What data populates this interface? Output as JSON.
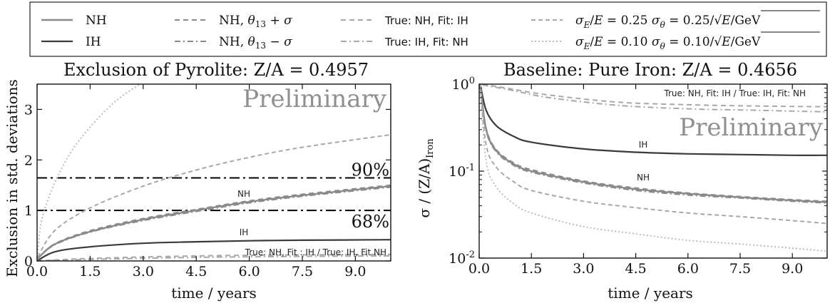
{
  "colors": {
    "nh": "#8a8a8a",
    "ih": "#3a3a3a",
    "dashed": "#a8a8a8",
    "dashdot": "#a8a8a8",
    "dotted": "#bdbdbd",
    "threshold": "#000000",
    "preliminary": "#8f8f8f"
  },
  "legend": [
    {
      "text": "NH",
      "style": "solid-light",
      "math": false
    },
    {
      "text": "IH",
      "style": "solid-dark",
      "math": false
    },
    {
      "text": "NH, θ13 + σ",
      "style": "dashed-dark",
      "math": true,
      "parts": [
        "NH, ",
        "θ",
        "13",
        " + σ"
      ]
    },
    {
      "text": "NH, θ13 − σ",
      "style": "dashdot-dark",
      "math": true,
      "parts": [
        "NH, ",
        "θ",
        "13",
        " − σ"
      ]
    },
    {
      "text": "True: NH, Fit: IH",
      "style": "dashed-light",
      "math": false
    },
    {
      "text": "True: IH, Fit: NH",
      "style": "dashdot-light",
      "math": false
    },
    {
      "text": "σE/E = 0.25   σθ = 0.25/√E/GeV",
      "style": "dashed-light2",
      "math": true,
      "ratio": "0.25"
    },
    {
      "text": "σE/E = 0.10   σθ = 0.10/√E/GeV",
      "style": "dotted",
      "math": true,
      "ratio": "0.10"
    }
  ],
  "chart_data": [
    {
      "type": "line",
      "title": "Exclusion of Pyrolite: Z/A = 0.4957",
      "xlabel": "time / years",
      "ylabel": "Exclusion in std. deviations",
      "xlim": [
        0,
        10
      ],
      "ylim": [
        0,
        3.5
      ],
      "xticks": [
        "0.0",
        "1.5",
        "3.0",
        "4.5",
        "6.0",
        "7.5",
        "9.0"
      ],
      "yticks": [
        "0",
        "1",
        "2",
        "3"
      ],
      "watermark": "Preliminary",
      "thresholds": [
        {
          "label": "90%",
          "y": 1.645
        },
        {
          "label": "68%",
          "y": 1.0
        }
      ],
      "annotations": [
        "NH",
        "IH",
        "True: NH, Fit : IH / True: IH, Fit NH"
      ],
      "series": [
        {
          "style": "solid-light",
          "x": [
            0.02,
            0.5,
            1.5,
            3,
            4.5,
            6,
            7.5,
            10
          ],
          "y": [
            0.05,
            0.33,
            0.58,
            0.82,
            1.0,
            1.17,
            1.3,
            1.48
          ]
        },
        {
          "style": "dashed-dark",
          "x": [
            0.02,
            0.5,
            1.5,
            3,
            4.5,
            6,
            7.5,
            10
          ],
          "y": [
            0.05,
            0.34,
            0.6,
            0.84,
            1.02,
            1.19,
            1.32,
            1.5
          ]
        },
        {
          "style": "dashdot-dark",
          "x": [
            0.02,
            0.5,
            1.5,
            3,
            4.5,
            6,
            7.5,
            10
          ],
          "y": [
            0.05,
            0.32,
            0.57,
            0.8,
            0.98,
            1.15,
            1.28,
            1.46
          ]
        },
        {
          "style": "solid-dark",
          "x": [
            0,
            0.5,
            1.5,
            3,
            4.5,
            6,
            7.5,
            10
          ],
          "y": [
            0.0,
            0.18,
            0.28,
            0.35,
            0.38,
            0.4,
            0.41,
            0.42
          ]
        },
        {
          "style": "dashed-light",
          "x": [
            0,
            1.5,
            4.5,
            7.5,
            10
          ],
          "y": [
            0.0,
            0.05,
            0.1,
            0.12,
            0.13
          ]
        },
        {
          "style": "dashdot-light",
          "x": [
            0,
            1.5,
            4.5,
            7.5,
            10
          ],
          "y": [
            0.0,
            0.03,
            0.07,
            0.09,
            0.1
          ]
        },
        {
          "style": "dashed-light2",
          "x": [
            0.02,
            0.5,
            1.5,
            3,
            4.5,
            6,
            7.5,
            10
          ],
          "y": [
            0.08,
            0.6,
            1.05,
            1.48,
            1.8,
            2.05,
            2.25,
            2.5
          ]
        },
        {
          "style": "dotted",
          "x": [
            0.0,
            0.1,
            0.3,
            0.6,
            1.0,
            1.5,
            2.2,
            2.9
          ],
          "y": [
            0.0,
            0.7,
            1.2,
            1.7,
            2.2,
            2.65,
            3.15,
            3.5
          ]
        }
      ]
    },
    {
      "type": "line",
      "title": "Baseline: Pure Iron: Z/A = 0.4656",
      "xlabel": "time / years",
      "ylabel": "σ / (Z/A)Iron",
      "xlim": [
        0,
        10
      ],
      "ylim": [
        0.01,
        1
      ],
      "yscale": "log",
      "xticks": [
        "0.0",
        "1.5",
        "3.0",
        "4.5",
        "6.0",
        "7.5",
        "9.0"
      ],
      "yticks": [
        "10^0",
        "10^-1",
        "10^-2"
      ],
      "watermark": "Preliminary",
      "annotations": [
        "True: NH, Fit: IH / True: IH, Fit: NH",
        "IH",
        "NH"
      ],
      "series": [
        {
          "style": "dashed-light",
          "x": [
            0.1,
            1,
            2,
            4,
            6,
            8,
            10
          ],
          "y": [
            1.0,
            0.87,
            0.75,
            0.62,
            0.58,
            0.56,
            0.55
          ]
        },
        {
          "style": "dashdot-light",
          "x": [
            0.1,
            1,
            2,
            4,
            6,
            8,
            10
          ],
          "y": [
            0.98,
            0.84,
            0.7,
            0.57,
            0.52,
            0.5,
            0.48
          ]
        },
        {
          "style": "solid-dark",
          "x": [
            0.03,
            0.2,
            0.5,
            1,
            1.5,
            3,
            4.5,
            6,
            7.5,
            9,
            10
          ],
          "y": [
            1.0,
            0.5,
            0.33,
            0.25,
            0.215,
            0.18,
            0.165,
            0.158,
            0.155,
            0.152,
            0.152
          ]
        },
        {
          "style": "solid-light",
          "x": [
            0.03,
            0.2,
            0.5,
            1,
            1.5,
            3,
            4.5,
            6,
            7.5,
            9,
            10
          ],
          "y": [
            1.0,
            0.3,
            0.17,
            0.12,
            0.1,
            0.075,
            0.062,
            0.055,
            0.05,
            0.046,
            0.044
          ]
        },
        {
          "style": "dashed-dark",
          "x": [
            0.03,
            0.2,
            0.5,
            1,
            1.5,
            3,
            4.5,
            6,
            7.5,
            9,
            10
          ],
          "y": [
            1.0,
            0.31,
            0.175,
            0.124,
            0.104,
            0.077,
            0.064,
            0.056,
            0.051,
            0.047,
            0.045
          ]
        },
        {
          "style": "dashdot-dark",
          "x": [
            0.03,
            0.2,
            0.5,
            1,
            1.5,
            3,
            4.5,
            6,
            7.5,
            9,
            10
          ],
          "y": [
            1.0,
            0.29,
            0.165,
            0.116,
            0.097,
            0.073,
            0.06,
            0.053,
            0.049,
            0.045,
            0.043
          ]
        },
        {
          "style": "dashed-light2",
          "x": [
            0.03,
            0.2,
            0.5,
            1,
            1.5,
            3,
            4.5,
            6,
            7.5,
            9,
            10
          ],
          "y": [
            1.0,
            0.2,
            0.11,
            0.075,
            0.06,
            0.045,
            0.038,
            0.033,
            0.03,
            0.027,
            0.025
          ]
        },
        {
          "style": "dotted",
          "x": [
            0.03,
            0.2,
            0.5,
            1,
            1.5,
            3,
            4.5,
            6,
            7.5,
            9,
            10
          ],
          "y": [
            1.0,
            0.13,
            0.065,
            0.042,
            0.033,
            0.023,
            0.019,
            0.016,
            0.0145,
            0.013,
            0.012
          ]
        }
      ]
    }
  ]
}
